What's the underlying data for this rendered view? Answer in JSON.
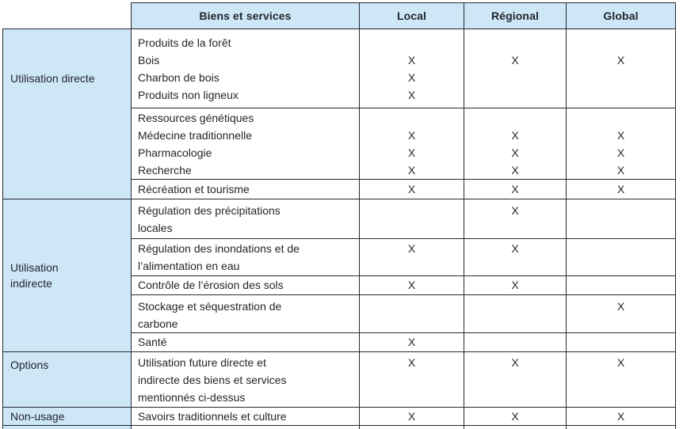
{
  "colors": {
    "header_bg": "#cde7f7",
    "group_bg": "#cde7f7",
    "border": "#26292e",
    "text": "#23262b"
  },
  "table": {
    "header": {
      "corner": "",
      "goods": "Biens et services",
      "local": "Local",
      "regional": "Régional",
      "global": "Global"
    },
    "groups": [
      {
        "id": "gdir",
        "label_lines": [
          "Utilisation directe"
        ],
        "blocks": [
          {
            "id": "b1",
            "lines": [
              {
                "text": "Produits de la forêt",
                "local": "",
                "regional": "",
                "global": ""
              },
              {
                "text": "Bois",
                "local": "X",
                "regional": "X",
                "global": "X"
              },
              {
                "text": "Charbon de bois",
                "local": "X",
                "regional": "",
                "global": ""
              },
              {
                "text": "Produits non ligneux",
                "local": "X",
                "regional": "",
                "global": ""
              }
            ]
          },
          {
            "id": "b2",
            "lines": [
              {
                "text": "Ressources génétiques",
                "local": "",
                "regional": "",
                "global": ""
              },
              {
                "text": "Médecine traditionnelle",
                "local": "X",
                "regional": "X",
                "global": "X"
              },
              {
                "text": "Pharmacologie",
                "local": "X",
                "regional": "X",
                "global": "X"
              },
              {
                "text": "Recherche",
                "local": "X",
                "regional": "X",
                "global": "X"
              }
            ]
          },
          {
            "id": "b3",
            "lines": [
              {
                "text": "Récréation et tourisme",
                "local": "X",
                "regional": "X",
                "global": "X"
              }
            ]
          }
        ]
      },
      {
        "id": "gind",
        "label_lines": [
          "Utilisation",
          "indirecte"
        ],
        "blocks": [
          {
            "id": "b4",
            "lines": [
              {
                "text": "Régulation des précipitations",
                "local": "",
                "regional": "X",
                "global": ""
              },
              {
                "text": "locales",
                "local": "",
                "regional": "",
                "global": ""
              }
            ]
          },
          {
            "id": "b5",
            "lines": [
              {
                "text": "Régulation des inondations et de",
                "local": "X",
                "regional": "X",
                "global": ""
              },
              {
                "text": "l’alimentation en eau",
                "local": "",
                "regional": "",
                "global": ""
              }
            ]
          },
          {
            "id": "b6",
            "lines": [
              {
                "text": "Contrôle de l’érosion des sols",
                "local": "X",
                "regional": "X",
                "global": ""
              }
            ]
          },
          {
            "id": "b7",
            "lines": [
              {
                "text": "Stockage et séquestration de",
                "local": "",
                "regional": "",
                "global": "X"
              },
              {
                "text": "carbone",
                "local": "",
                "regional": "",
                "global": ""
              }
            ]
          },
          {
            "id": "b8",
            "lines": [
              {
                "text": "Santé",
                "local": "X",
                "regional": "",
                "global": ""
              }
            ]
          }
        ]
      },
      {
        "id": "gopt",
        "label_lines": [
          "Options"
        ],
        "blocks": [
          {
            "id": "opt",
            "lines": [
              {
                "text": "Utilisation future directe et",
                "local": "X",
                "regional": "X",
                "global": "X"
              },
              {
                "text": "indirecte des biens et services",
                "local": "",
                "regional": "",
                "global": ""
              },
              {
                "text": "mentionnés ci-dessus",
                "local": "",
                "regional": "",
                "global": ""
              }
            ]
          }
        ]
      },
      {
        "id": "gnon",
        "label_lines": [
          "Non-usage"
        ],
        "blocks": [
          {
            "id": "non",
            "lines": [
              {
                "text": "Savoirs traditionnels et culture",
                "local": "X",
                "regional": "X",
                "global": "X"
              }
            ]
          }
        ]
      }
    ]
  }
}
